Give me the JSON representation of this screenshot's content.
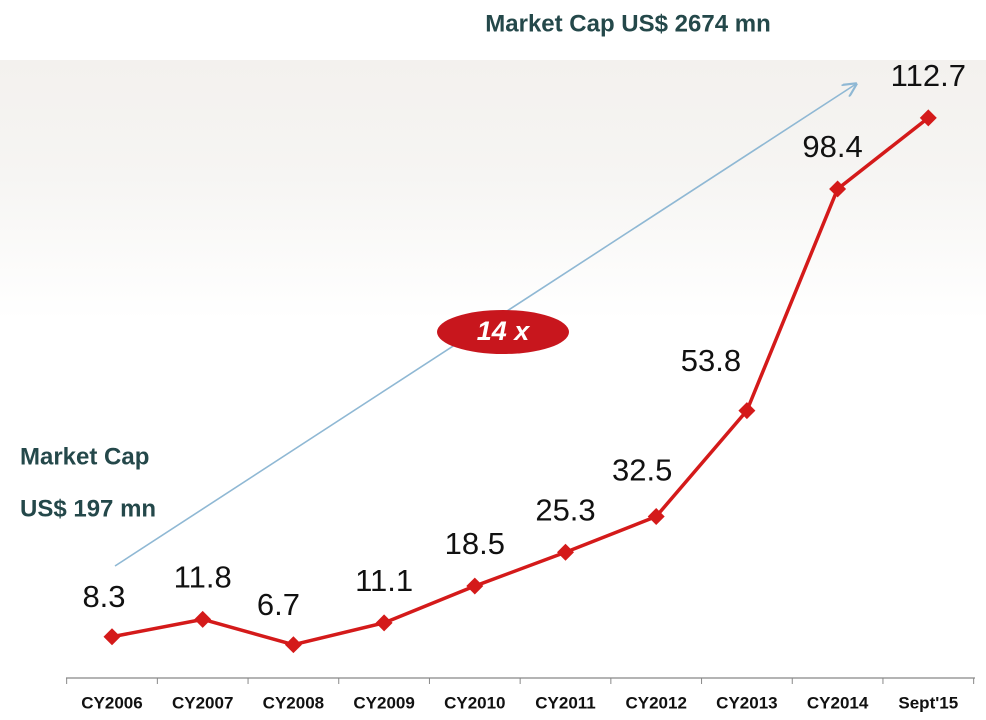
{
  "chart_data": {
    "type": "line",
    "categories": [
      "CY2006",
      "CY2007",
      "CY2008",
      "CY2009",
      "CY2010",
      "CY2011",
      "CY2012",
      "CY2013",
      "CY2014",
      "Sept'15"
    ],
    "values": [
      8.3,
      11.8,
      6.7,
      11.1,
      18.5,
      25.3,
      32.5,
      53.8,
      98.4,
      112.7
    ],
    "color": "#d41a1a",
    "annotations": {
      "end": "Market Cap US$ 2674 mn",
      "start_line1": "Market Cap",
      "start_line2": "US$ 197 mn",
      "growth": "14 x"
    }
  }
}
